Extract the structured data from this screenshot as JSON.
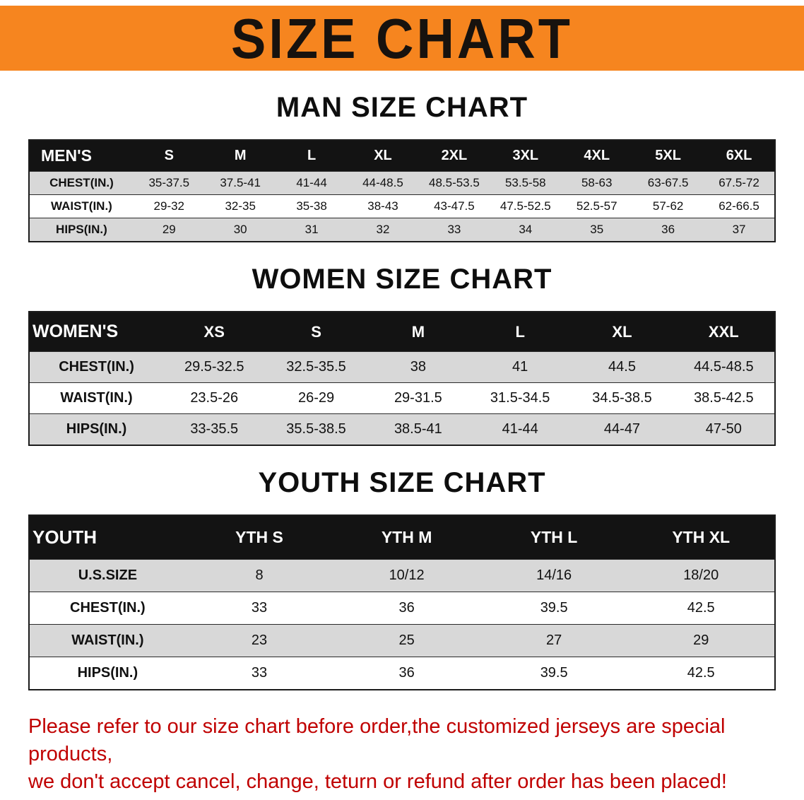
{
  "banner": {
    "title": "SIZE CHART"
  },
  "colors": {
    "banner_bg": "#f6851f",
    "table_header_bg": "#131313",
    "row_alt_bg": "#d8d8d8",
    "disclaimer_text": "#c00000"
  },
  "sections": [
    {
      "id": "men",
      "heading": "MAN SIZE CHART",
      "table": {
        "header": [
          "MEN'S",
          "S",
          "M",
          "L",
          "XL",
          "2XL",
          "3XL",
          "4XL",
          "5XL",
          "6XL"
        ],
        "rows": [
          [
            "CHEST(IN.)",
            "35-37.5",
            "37.5-41",
            "41-44",
            "44-48.5",
            "48.5-53.5",
            "53.5-58",
            "58-63",
            "63-67.5",
            "67.5-72"
          ],
          [
            "WAIST(IN.)",
            "29-32",
            "32-35",
            "35-38",
            "38-43",
            "43-47.5",
            "47.5-52.5",
            "52.5-57",
            "57-62",
            "62-66.5"
          ],
          [
            "HIPS(IN.)",
            "29",
            "30",
            "31",
            "32",
            "33",
            "34",
            "35",
            "36",
            "37"
          ]
        ]
      }
    },
    {
      "id": "women",
      "heading": "WOMEN SIZE CHART",
      "table": {
        "header": [
          "WOMEN'S",
          "XS",
          "S",
          "M",
          "L",
          "XL",
          "XXL"
        ],
        "rows": [
          [
            "CHEST(IN.)",
            "29.5-32.5",
            "32.5-35.5",
            "38",
            "41",
            "44.5",
            "44.5-48.5"
          ],
          [
            "WAIST(IN.)",
            "23.5-26",
            "26-29",
            "29-31.5",
            "31.5-34.5",
            "34.5-38.5",
            "38.5-42.5"
          ],
          [
            "HIPS(IN.)",
            "33-35.5",
            "35.5-38.5",
            "38.5-41",
            "41-44",
            "44-47",
            "47-50"
          ]
        ]
      }
    },
    {
      "id": "youth",
      "heading": "YOUTH SIZE CHART",
      "table": {
        "header": [
          "YOUTH",
          "YTH S",
          "YTH M",
          "YTH L",
          "YTH XL"
        ],
        "rows": [
          [
            "U.S.SIZE",
            "8",
            "10/12",
            "14/16",
            "18/20"
          ],
          [
            "CHEST(IN.)",
            "33",
            "36",
            "39.5",
            "42.5"
          ],
          [
            "WAIST(IN.)",
            "23",
            "25",
            "27",
            "29"
          ],
          [
            "HIPS(IN.)",
            "33",
            "36",
            "39.5",
            "42.5"
          ]
        ]
      }
    }
  ],
  "disclaimer": {
    "line1": "Please refer to our size chart before order,the customized jerseys are special products,",
    "line2": "we don't accept cancel, change, teturn or refund after order has been placed!"
  }
}
